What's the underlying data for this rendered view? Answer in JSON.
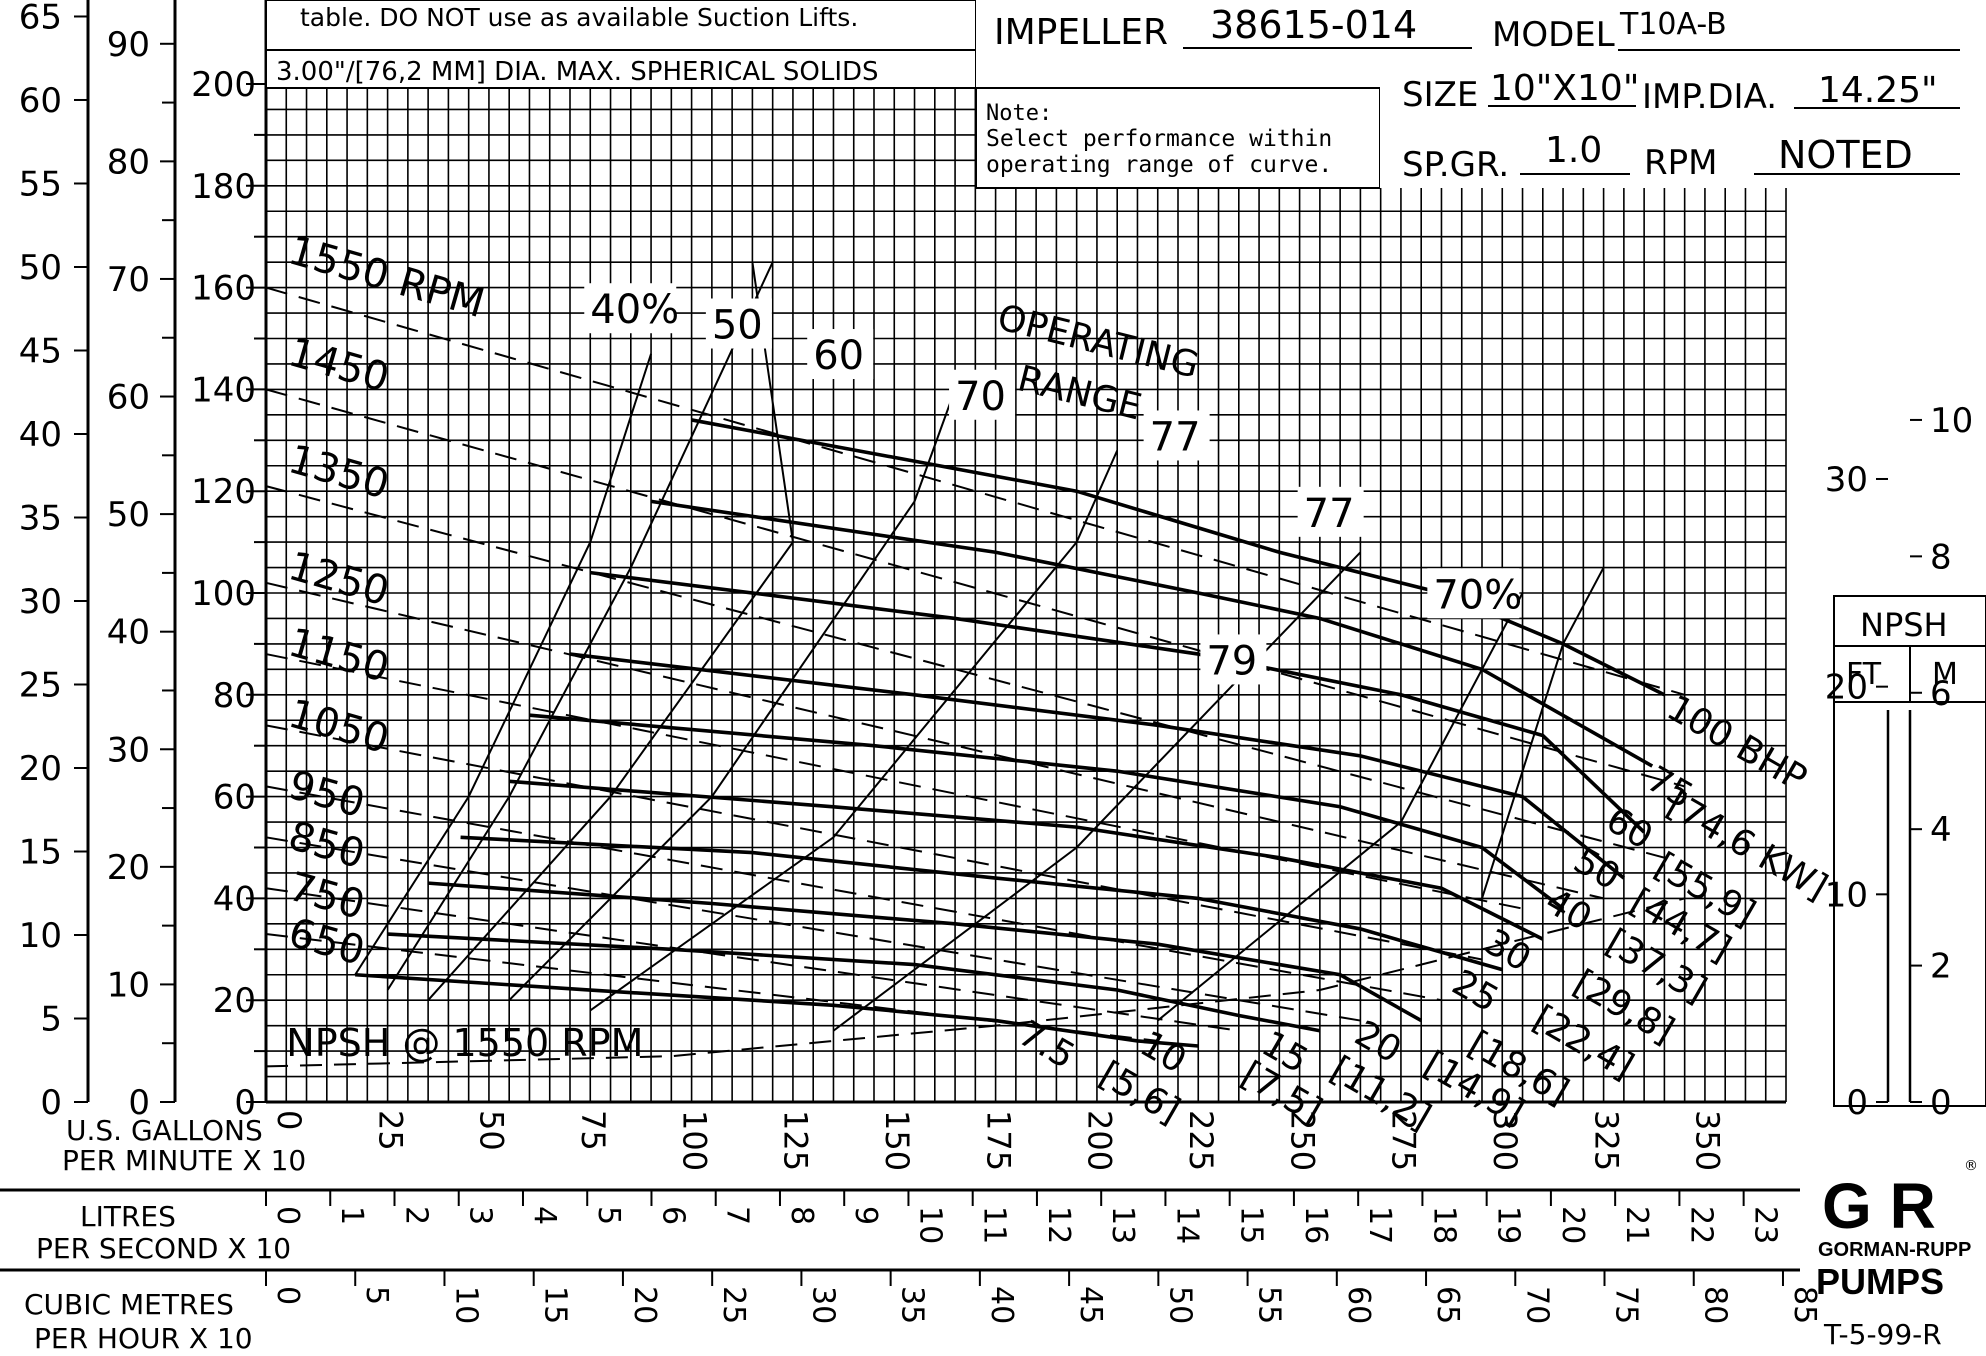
{
  "header": {
    "note_top": "table. DO NOT use as available Suction Lifts.",
    "solids": "3.00\"/[76,2 MM] DIA. MAX. SPHERICAL SOLIDS",
    "impeller_label": "IMPELLER",
    "impeller_value": "38615-014",
    "model_label": "MODEL",
    "model_value": "T10A-B",
    "size_label": "SIZE",
    "size_value": "10\"X10\"",
    "impdia_label": "IMP.DIA.",
    "impdia_value": "14.25\"",
    "spgr_label": "SP.GR.",
    "spgr_value": "1.0",
    "rpm_label": "RPM",
    "rpm_value": "NOTED",
    "note_title": "Note:",
    "note_line1": "Select performance within",
    "note_line2": "operating range of curve."
  },
  "npsh_box": {
    "title": "NPSH",
    "ft": "FT",
    "m": "M"
  },
  "bottom": {
    "gpm_label_1": "U.S. GALLONS",
    "gpm_label_2": "PER MINUTE  X 10",
    "lps_label_1": "LITRES",
    "lps_label_2": "PER SECOND X 10",
    "cmh_label_1": "CUBIC METRES",
    "cmh_label_2": "PER HOUR X 10"
  },
  "logo": {
    "mark": "G R",
    "brand": "GORMAN-RUPP",
    "pumps": "PUMPS",
    "reg": "®"
  },
  "drawing_number": "T-5-99-R",
  "chart_data": {
    "type": "line",
    "title": "",
    "xlabel": "U.S. GALLONS PER MINUTE X 10",
    "ylabel": "",
    "x_ticks": [
      0,
      25,
      50,
      75,
      100,
      125,
      150,
      175,
      200,
      225,
      250,
      275,
      300,
      325,
      350
    ],
    "xlim": [
      0,
      375
    ],
    "ylim": [
      0,
      200
    ],
    "grid": true,
    "axes": {
      "head_ft": [
        0,
        20,
        40,
        60,
        80,
        100,
        120,
        140,
        160,
        180,
        200
      ],
      "psi": [
        0,
        10,
        20,
        30,
        40,
        50,
        60,
        70,
        80,
        90
      ],
      "metres": [
        0,
        5,
        10,
        15,
        20,
        25,
        30,
        35,
        40,
        45,
        50,
        55,
        60,
        65
      ],
      "lps": [
        0,
        1,
        2,
        3,
        4,
        5,
        6,
        7,
        8,
        9,
        10,
        11,
        12,
        13,
        14,
        15,
        16,
        17,
        18,
        19,
        20,
        21,
        22,
        23
      ],
      "cmh": [
        0,
        5,
        10,
        15,
        20,
        25,
        30,
        35,
        40,
        45,
        50,
        55,
        60,
        65,
        70,
        75,
        80,
        85
      ],
      "npsh_ft": [
        0,
        10,
        20,
        30
      ],
      "npsh_m": [
        0,
        2,
        4,
        6,
        8,
        10
      ]
    },
    "series": [
      {
        "name": "1550 RPM",
        "x": [
          105,
          200,
          250,
          290,
          320,
          345
        ],
        "values": [
          134,
          120,
          108,
          100,
          90,
          80
        ]
      },
      {
        "name": "1450 RPM",
        "x": [
          95,
          180,
          230,
          260,
          300,
          342
        ],
        "values": [
          118,
          108,
          100,
          95,
          85,
          66
        ]
      },
      {
        "name": "1350 RPM",
        "x": [
          80,
          170,
          230,
          280,
          315,
          340
        ],
        "values": [
          104,
          95,
          88,
          80,
          72,
          53
        ]
      },
      {
        "name": "1250 RPM",
        "x": [
          75,
          160,
          220,
          270,
          310,
          335
        ],
        "values": [
          88,
          80,
          74,
          68,
          60,
          44
        ]
      },
      {
        "name": "1150 RPM",
        "x": [
          65,
          150,
          210,
          265,
          300,
          320
        ],
        "values": [
          76,
          70,
          65,
          58,
          50,
          38
        ]
      },
      {
        "name": "1050 RPM",
        "x": [
          60,
          140,
          200,
          250,
          290,
          315
        ],
        "values": [
          63,
          58,
          54,
          48,
          42,
          32
        ]
      },
      {
        "name": "950 RPM",
        "x": [
          48,
          120,
          180,
          230,
          270,
          305
        ],
        "values": [
          52,
          49,
          44,
          40,
          34,
          26
        ]
      },
      {
        "name": "850 RPM",
        "x": [
          40,
          110,
          170,
          220,
          265,
          285
        ],
        "values": [
          43,
          39,
          35,
          31,
          25,
          16
        ]
      },
      {
        "name": "750 RPM",
        "x": [
          30,
          100,
          160,
          210,
          240,
          260
        ],
        "values": [
          33,
          30,
          27,
          22,
          17,
          14
        ]
      },
      {
        "name": "650 RPM",
        "x": [
          22,
          80,
          140,
          180,
          215,
          230
        ],
        "values": [
          25,
          22,
          19,
          16,
          12,
          11
        ]
      }
    ],
    "labels": {
      "speeds": [
        "1550 RPM",
        "1450",
        "1350",
        "1250",
        "1150",
        "1050",
        "950",
        "850",
        "750",
        "650"
      ],
      "efficiency": [
        "40%",
        "50",
        "60",
        "70",
        "77",
        "79",
        "77",
        "70%"
      ],
      "horsepower": [
        "100 BHP",
        "[74,6 KW]",
        "75",
        "[55,9]",
        "60",
        "[44,7]",
        "50",
        "[37,3]",
        "40",
        "[29,8]",
        "30",
        "[22,4]",
        "25",
        "[18,6]",
        "20",
        "[14,9]",
        "15",
        "[11,2]",
        "10",
        "[7,5]",
        "7.5",
        "[5,6]"
      ],
      "npsh": "NPSH @ 1550 RPM",
      "operating_1": "OPERATING",
      "operating_2": "RANGE"
    }
  }
}
